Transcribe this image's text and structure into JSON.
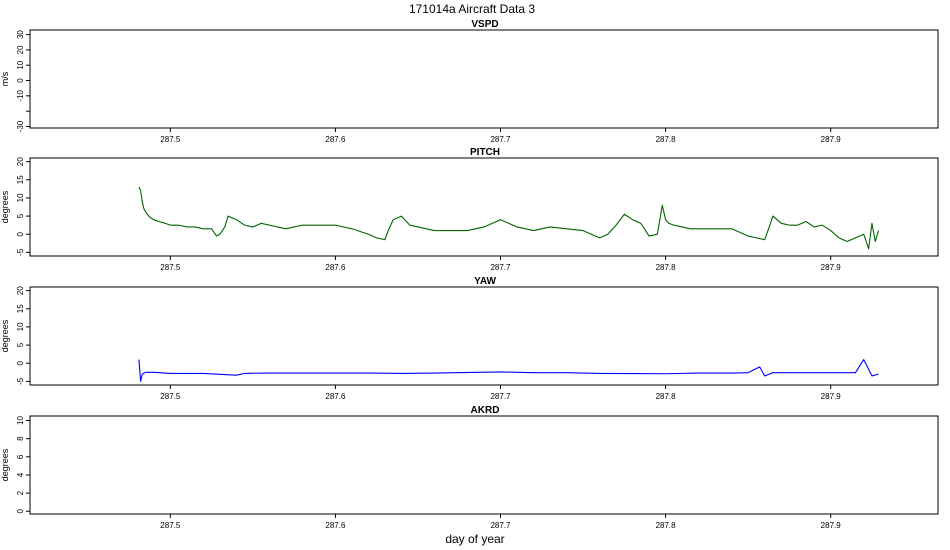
{
  "figure": {
    "title": "171014a   Aircraft Data 3",
    "xlabel": "day of year"
  },
  "chart_data": [
    {
      "type": "line",
      "title": "VSPD",
      "ylabel": "m/s",
      "xlim": [
        287.415,
        287.965
      ],
      "ylim": [
        -31,
        33
      ],
      "x_ticks": [
        287.5,
        287.6,
        287.7,
        287.8,
        287.9
      ],
      "y_ticks": [
        -30,
        -20,
        -10,
        0,
        10,
        20,
        30
      ],
      "y_tick_labels": [
        "-30",
        "",
        "-10",
        "0",
        "10",
        "20",
        "30"
      ],
      "series": [
        {
          "color": "#000000",
          "x": [
            287.415,
            287.965
          ],
          "y": [
            -31,
            -31
          ]
        }
      ]
    },
    {
      "type": "line",
      "title": "PITCH",
      "ylabel": "degrees",
      "xlim": [
        287.415,
        287.965
      ],
      "ylim": [
        -6,
        21
      ],
      "x_ticks": [
        287.5,
        287.6,
        287.7,
        287.8,
        287.9
      ],
      "y_ticks": [
        -5,
        0,
        5,
        10,
        15,
        20
      ],
      "series": [
        {
          "color": "#006400",
          "x": [
            287.481,
            287.482,
            287.483,
            287.484,
            287.486,
            287.488,
            287.49,
            287.493,
            287.497,
            287.5,
            287.505,
            287.51,
            287.515,
            287.52,
            287.525,
            287.528,
            287.53,
            287.533,
            287.535,
            287.54,
            287.545,
            287.55,
            287.555,
            287.56,
            287.565,
            287.57,
            287.575,
            287.58,
            287.59,
            287.6,
            287.61,
            287.62,
            287.625,
            287.63,
            287.632,
            287.635,
            287.64,
            287.645,
            287.65,
            287.655,
            287.66,
            287.67,
            287.68,
            287.69,
            287.7,
            287.71,
            287.72,
            287.73,
            287.74,
            287.75,
            287.76,
            287.765,
            287.77,
            287.775,
            287.78,
            287.785,
            287.79,
            287.795,
            287.798,
            287.8,
            287.802,
            287.805,
            287.81,
            287.815,
            287.82,
            287.83,
            287.84,
            287.85,
            287.855,
            287.86,
            287.862,
            287.865,
            287.87,
            287.875,
            287.88,
            287.885,
            287.89,
            287.895,
            287.9,
            287.905,
            287.91,
            287.915,
            287.92,
            287.923,
            287.925,
            287.927,
            287.929
          ],
          "y": [
            13,
            12,
            9,
            7,
            5.5,
            4.5,
            4,
            3.5,
            3,
            2.5,
            2.5,
            2,
            2,
            1.5,
            1.5,
            -0.5,
            0,
            2,
            5,
            4,
            2.5,
            2,
            3,
            2.5,
            2,
            1.5,
            2,
            2.5,
            2.5,
            2.5,
            1.5,
            0,
            -1,
            -1.5,
            1,
            4,
            5,
            2.5,
            2,
            1.5,
            1,
            1,
            1,
            2,
            4,
            2,
            1,
            2,
            1.5,
            1,
            -1,
            0,
            2.5,
            5.5,
            4,
            3,
            -0.5,
            0,
            8,
            4,
            3,
            2.5,
            2,
            1.5,
            1.5,
            1.5,
            1.5,
            -0.5,
            -1,
            -1.5,
            1,
            5,
            3,
            2.5,
            2.5,
            3.5,
            2,
            2.5,
            1,
            -1,
            -2,
            -1,
            0,
            -4,
            3,
            -2,
            1
          ]
        }
      ]
    },
    {
      "type": "line",
      "title": "YAW",
      "ylabel": "degrees",
      "xlim": [
        287.415,
        287.965
      ],
      "ylim": [
        -6,
        21
      ],
      "x_ticks": [
        287.5,
        287.6,
        287.7,
        287.8,
        287.9
      ],
      "y_ticks": [
        -5,
        0,
        5,
        10,
        15,
        20
      ],
      "series": [
        {
          "color": "#0000ff",
          "x": [
            287.481,
            287.482,
            287.483,
            287.485,
            287.49,
            287.5,
            287.52,
            287.54,
            287.545,
            287.56,
            287.6,
            287.62,
            287.64,
            287.66,
            287.7,
            287.72,
            287.74,
            287.76,
            287.8,
            287.82,
            287.84,
            287.85,
            287.857,
            287.86,
            287.865,
            287.87,
            287.9,
            287.915,
            287.92,
            287.925,
            287.929
          ],
          "y": [
            1,
            -5,
            -3,
            -2.5,
            -2.5,
            -2.8,
            -2.8,
            -3.3,
            -2.8,
            -2.7,
            -2.7,
            -2.7,
            -2.8,
            -2.7,
            -2.4,
            -2.6,
            -2.6,
            -2.8,
            -2.9,
            -2.7,
            -2.7,
            -2.6,
            -1,
            -3.5,
            -2.6,
            -2.6,
            -2.6,
            -2.6,
            1,
            -3.5,
            -3
          ]
        }
      ]
    },
    {
      "type": "line",
      "title": "AKRD",
      "ylabel": "degrees",
      "xlim": [
        287.415,
        287.965
      ],
      "ylim": [
        -0.3,
        10.5
      ],
      "x_ticks": [
        287.5,
        287.6,
        287.7,
        287.8,
        287.9
      ],
      "y_ticks": [
        0,
        2,
        4,
        6,
        8,
        10
      ],
      "series": [
        {
          "color": "#000000",
          "x": [
            287.415,
            287.965
          ],
          "y": [
            -0.3,
            -0.3
          ]
        }
      ]
    }
  ]
}
